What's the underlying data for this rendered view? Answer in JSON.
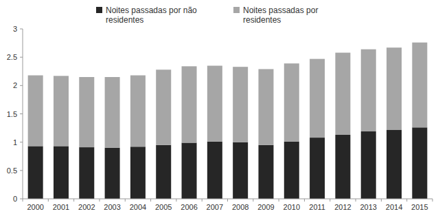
{
  "chart_data": {
    "type": "bar",
    "stacked": true,
    "legend": "top",
    "categories": [
      "2000",
      "2001",
      "2002",
      "2003",
      "2004",
      "2005",
      "2006",
      "2007",
      "2008",
      "2009",
      "2010",
      "2011",
      "2012",
      "2013",
      "2014",
      "2015"
    ],
    "series": [
      {
        "name": "Noites passadas por não residentes",
        "color": "#262626",
        "values": [
          0.93,
          0.93,
          0.91,
          0.9,
          0.92,
          0.95,
          0.99,
          1.01,
          1.0,
          0.95,
          1.01,
          1.08,
          1.13,
          1.19,
          1.22,
          1.26
        ]
      },
      {
        "name": "Noites passadas por residentes",
        "color": "#a6a6a6",
        "values": [
          1.25,
          1.24,
          1.24,
          1.25,
          1.26,
          1.33,
          1.35,
          1.34,
          1.33,
          1.34,
          1.38,
          1.39,
          1.45,
          1.45,
          1.45,
          1.5
        ]
      }
    ],
    "ylim": [
      0,
      3
    ],
    "yticks": [
      0,
      0.5,
      1,
      1.5,
      2,
      2.5,
      3
    ],
    "grid": false
  }
}
